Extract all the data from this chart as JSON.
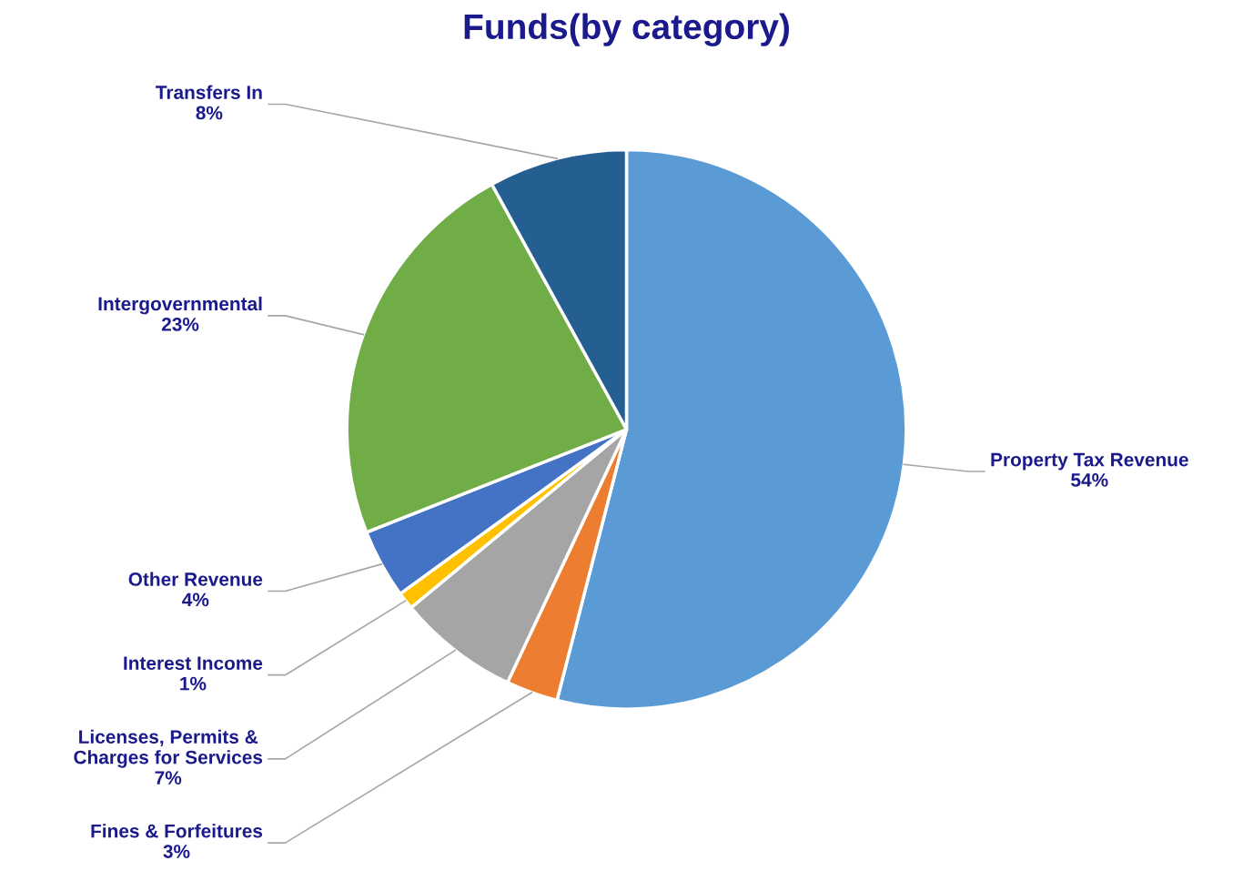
{
  "chart_data": {
    "type": "pie",
    "title": "Funds(by category)",
    "categories": [
      "Property Tax Revenue",
      "Fines & Forfeitures",
      "Licenses, Permits & Charges for Services",
      "Interest Income",
      "Other Revenue",
      "Intergovernmental",
      "Transfers In"
    ],
    "values": [
      54,
      3,
      7,
      1,
      4,
      23,
      8
    ],
    "value_labels": [
      "54%",
      "3%",
      "7%",
      "1%",
      "4%",
      "23%",
      "8%"
    ],
    "colors": [
      "#5b9bd5",
      "#ed7d31",
      "#a5a5a5",
      "#ffc000",
      "#4472c4",
      "#70ad47",
      "#255e91"
    ]
  }
}
